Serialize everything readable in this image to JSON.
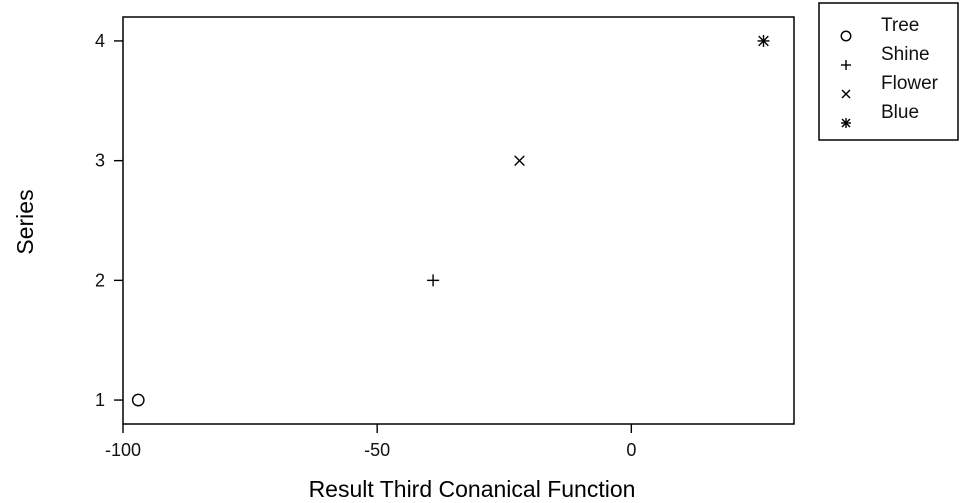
{
  "chart_data": {
    "type": "scatter",
    "xlabel": "Result Third Conanical Function",
    "ylabel": "Series",
    "xlim": [
      -100,
      32
    ],
    "ylim": [
      0.8,
      4.2
    ],
    "xticks": [
      -100,
      -50,
      0
    ],
    "yticks": [
      1,
      2,
      3,
      4
    ],
    "xtick_labels": [
      "-100",
      "-50",
      "0"
    ],
    "ytick_labels": [
      "1",
      "2",
      "3",
      "4"
    ],
    "grid": false,
    "legend_position": "outside-top-right",
    "series": [
      {
        "name": "Tree",
        "marker": "circle",
        "points": [
          {
            "x": -97,
            "y": 1
          }
        ]
      },
      {
        "name": "Shine",
        "marker": "plus",
        "points": [
          {
            "x": -39,
            "y": 2
          }
        ]
      },
      {
        "name": "Flower",
        "marker": "cross",
        "points": [
          {
            "x": -22,
            "y": 3
          }
        ]
      },
      {
        "name": "Blue",
        "marker": "star",
        "points": [
          {
            "x": 26,
            "y": 4
          }
        ]
      }
    ]
  },
  "colors": {
    "ink": "#000000",
    "background": "#ffffff"
  }
}
